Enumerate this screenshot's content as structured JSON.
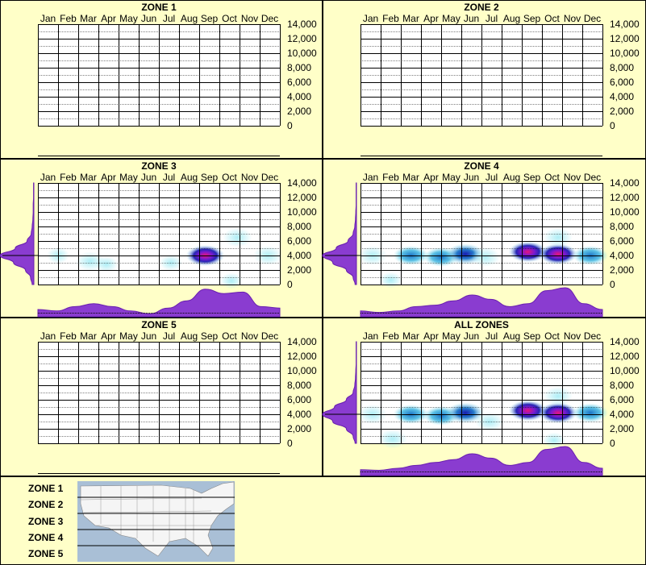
{
  "colors": {
    "background": "#ffffc8",
    "density_fill": "#8a3cd0",
    "density_stroke": "#6a1fb0",
    "heat_low": "#a6ecf5",
    "heat_mid": "#1a73c7",
    "heat_high": "#1a1ab0",
    "heat_peak": "#e8147a",
    "map_water": "#a9bfd6",
    "map_land": "#f5f5f5"
  },
  "legend": {
    "zones": [
      "ZONE 1",
      "ZONE 2",
      "ZONE 3",
      "ZONE 4",
      "ZONE 5"
    ],
    "map_icon": "usa-zone-map"
  },
  "chart_data": [
    {
      "type": "heatmap",
      "title": "ZONE 1",
      "categories": [
        "Jan",
        "Feb",
        "Mar",
        "Apr",
        "May",
        "Jun",
        "Jul",
        "Aug",
        "Sep",
        "Oct",
        "Nov",
        "Dec"
      ],
      "y_ticks": [
        "14,000",
        "12,000",
        "10,000",
        "8,000",
        "6,000",
        "4,000",
        "2,000",
        "0"
      ],
      "ylim": [
        0,
        14000
      ],
      "grid": true,
      "has_data": false,
      "hotspots": [],
      "monthly_density": [],
      "elevation_density": []
    },
    {
      "type": "heatmap",
      "title": "ZONE 2",
      "categories": [
        "Jan",
        "Feb",
        "Mar",
        "Apr",
        "May",
        "Jun",
        "Jul",
        "Aug",
        "Sep",
        "Oct",
        "Nov",
        "Dec"
      ],
      "y_ticks": [
        "14,000",
        "12,000",
        "10,000",
        "8,000",
        "6,000",
        "4,000",
        "2,000",
        "0"
      ],
      "ylim": [
        0,
        14000
      ],
      "grid": true,
      "has_data": false,
      "hotspots": [],
      "monthly_density": [],
      "elevation_density": []
    },
    {
      "type": "heatmap",
      "title": "ZONE 3",
      "categories": [
        "Jan",
        "Feb",
        "Mar",
        "Apr",
        "May",
        "Jun",
        "Jul",
        "Aug",
        "Sep",
        "Oct",
        "Nov",
        "Dec"
      ],
      "y_ticks": [
        "14,000",
        "12,000",
        "10,000",
        "8,000",
        "6,000",
        "4,000",
        "2,000",
        "0"
      ],
      "ylim": [
        0,
        14000
      ],
      "grid": true,
      "has_data": true,
      "hotspots": [
        {
          "month": 1.0,
          "elev": 4000,
          "level": 0.25
        },
        {
          "month": 2.6,
          "elev": 3200,
          "level": 0.35
        },
        {
          "month": 3.4,
          "elev": 2800,
          "level": 0.25
        },
        {
          "month": 6.6,
          "elev": 3000,
          "level": 0.25
        },
        {
          "month": 8.3,
          "elev": 4000,
          "level": 0.95
        },
        {
          "month": 9.9,
          "elev": 6500,
          "level": 0.3
        },
        {
          "month": 9.6,
          "elev": 500,
          "level": 0.2
        },
        {
          "month": 11.4,
          "elev": 4000,
          "level": 0.3
        }
      ],
      "monthly_density": [
        0.25,
        0.2,
        0.35,
        0.45,
        0.35,
        0.2,
        0.1,
        0.3,
        0.55,
        0.95,
        0.8,
        0.85,
        0.35,
        0.3
      ],
      "elevation_density": [
        0.05,
        0.1,
        0.25,
        0.6,
        1.0,
        0.55,
        0.2,
        0.08,
        0.05,
        0.03,
        0.02,
        0.02,
        0.01,
        0.01,
        0.01
      ]
    },
    {
      "type": "heatmap",
      "title": "ZONE 4",
      "categories": [
        "Jan",
        "Feb",
        "Mar",
        "Apr",
        "May",
        "Jun",
        "Jul",
        "Aug",
        "Sep",
        "Oct",
        "Nov",
        "Dec"
      ],
      "y_ticks": [
        "14,000",
        "12,000",
        "10,000",
        "8,000",
        "6,000",
        "4,000",
        "2,000",
        "0"
      ],
      "ylim": [
        0,
        14000
      ],
      "grid": true,
      "has_data": true,
      "hotspots": [
        {
          "month": 0.6,
          "elev": 4000,
          "level": 0.35
        },
        {
          "month": 2.5,
          "elev": 4000,
          "level": 0.6
        },
        {
          "month": 4.0,
          "elev": 3800,
          "level": 0.55
        },
        {
          "month": 5.2,
          "elev": 4200,
          "level": 0.85
        },
        {
          "month": 6.2,
          "elev": 3800,
          "level": 0.35
        },
        {
          "month": 8.3,
          "elev": 4500,
          "level": 1.0
        },
        {
          "month": 9.8,
          "elev": 4200,
          "level": 0.95
        },
        {
          "month": 9.8,
          "elev": 6500,
          "level": 0.35
        },
        {
          "month": 11.4,
          "elev": 4000,
          "level": 0.45
        },
        {
          "month": 1.5,
          "elev": 600,
          "level": 0.2
        }
      ],
      "monthly_density": [
        0.2,
        0.15,
        0.2,
        0.35,
        0.4,
        0.55,
        0.75,
        0.6,
        0.35,
        0.45,
        0.9,
        1.0,
        0.45,
        0.25
      ],
      "elevation_density": [
        0.04,
        0.1,
        0.3,
        0.7,
        1.0,
        0.6,
        0.25,
        0.1,
        0.05,
        0.03,
        0.02,
        0.01,
        0.01,
        0.01,
        0.01
      ]
    },
    {
      "type": "heatmap",
      "title": "ZONE 5",
      "categories": [
        "Jan",
        "Feb",
        "Mar",
        "Apr",
        "May",
        "Jun",
        "Jul",
        "Aug",
        "Sep",
        "Oct",
        "Nov",
        "Dec"
      ],
      "y_ticks": [
        "14,000",
        "12,000",
        "10,000",
        "8,000",
        "6,000",
        "4,000",
        "2,000",
        "0"
      ],
      "ylim": [
        0,
        14000
      ],
      "grid": true,
      "has_data": false,
      "hotspots": [],
      "monthly_density": [],
      "elevation_density": []
    },
    {
      "type": "heatmap",
      "title": "ALL ZONES",
      "categories": [
        "Jan",
        "Feb",
        "Mar",
        "Apr",
        "May",
        "Jun",
        "Jul",
        "Aug",
        "Sep",
        "Oct",
        "Nov",
        "Dec"
      ],
      "y_ticks": [
        "14,000",
        "12,000",
        "10,000",
        "8,000",
        "6,000",
        "4,000",
        "2,000",
        "0"
      ],
      "ylim": [
        0,
        14000
      ],
      "grid": true,
      "has_data": true,
      "hotspots": [
        {
          "month": 0.6,
          "elev": 4000,
          "level": 0.35
        },
        {
          "month": 2.5,
          "elev": 4000,
          "level": 0.6
        },
        {
          "month": 4.0,
          "elev": 3800,
          "level": 0.55
        },
        {
          "month": 5.2,
          "elev": 4200,
          "level": 0.85
        },
        {
          "month": 6.4,
          "elev": 3000,
          "level": 0.3
        },
        {
          "month": 8.3,
          "elev": 4500,
          "level": 1.0
        },
        {
          "month": 9.8,
          "elev": 4200,
          "level": 0.95
        },
        {
          "month": 9.8,
          "elev": 6500,
          "level": 0.35
        },
        {
          "month": 11.4,
          "elev": 4200,
          "level": 0.45
        },
        {
          "month": 1.6,
          "elev": 600,
          "level": 0.35
        },
        {
          "month": 9.6,
          "elev": 400,
          "level": 0.25
        }
      ],
      "monthly_density": [
        0.2,
        0.18,
        0.25,
        0.35,
        0.45,
        0.55,
        0.75,
        0.6,
        0.35,
        0.45,
        0.9,
        1.0,
        0.45,
        0.25
      ],
      "elevation_density": [
        0.04,
        0.1,
        0.3,
        0.7,
        1.0,
        0.65,
        0.3,
        0.1,
        0.05,
        0.03,
        0.02,
        0.01,
        0.01,
        0.01,
        0.01
      ]
    }
  ]
}
